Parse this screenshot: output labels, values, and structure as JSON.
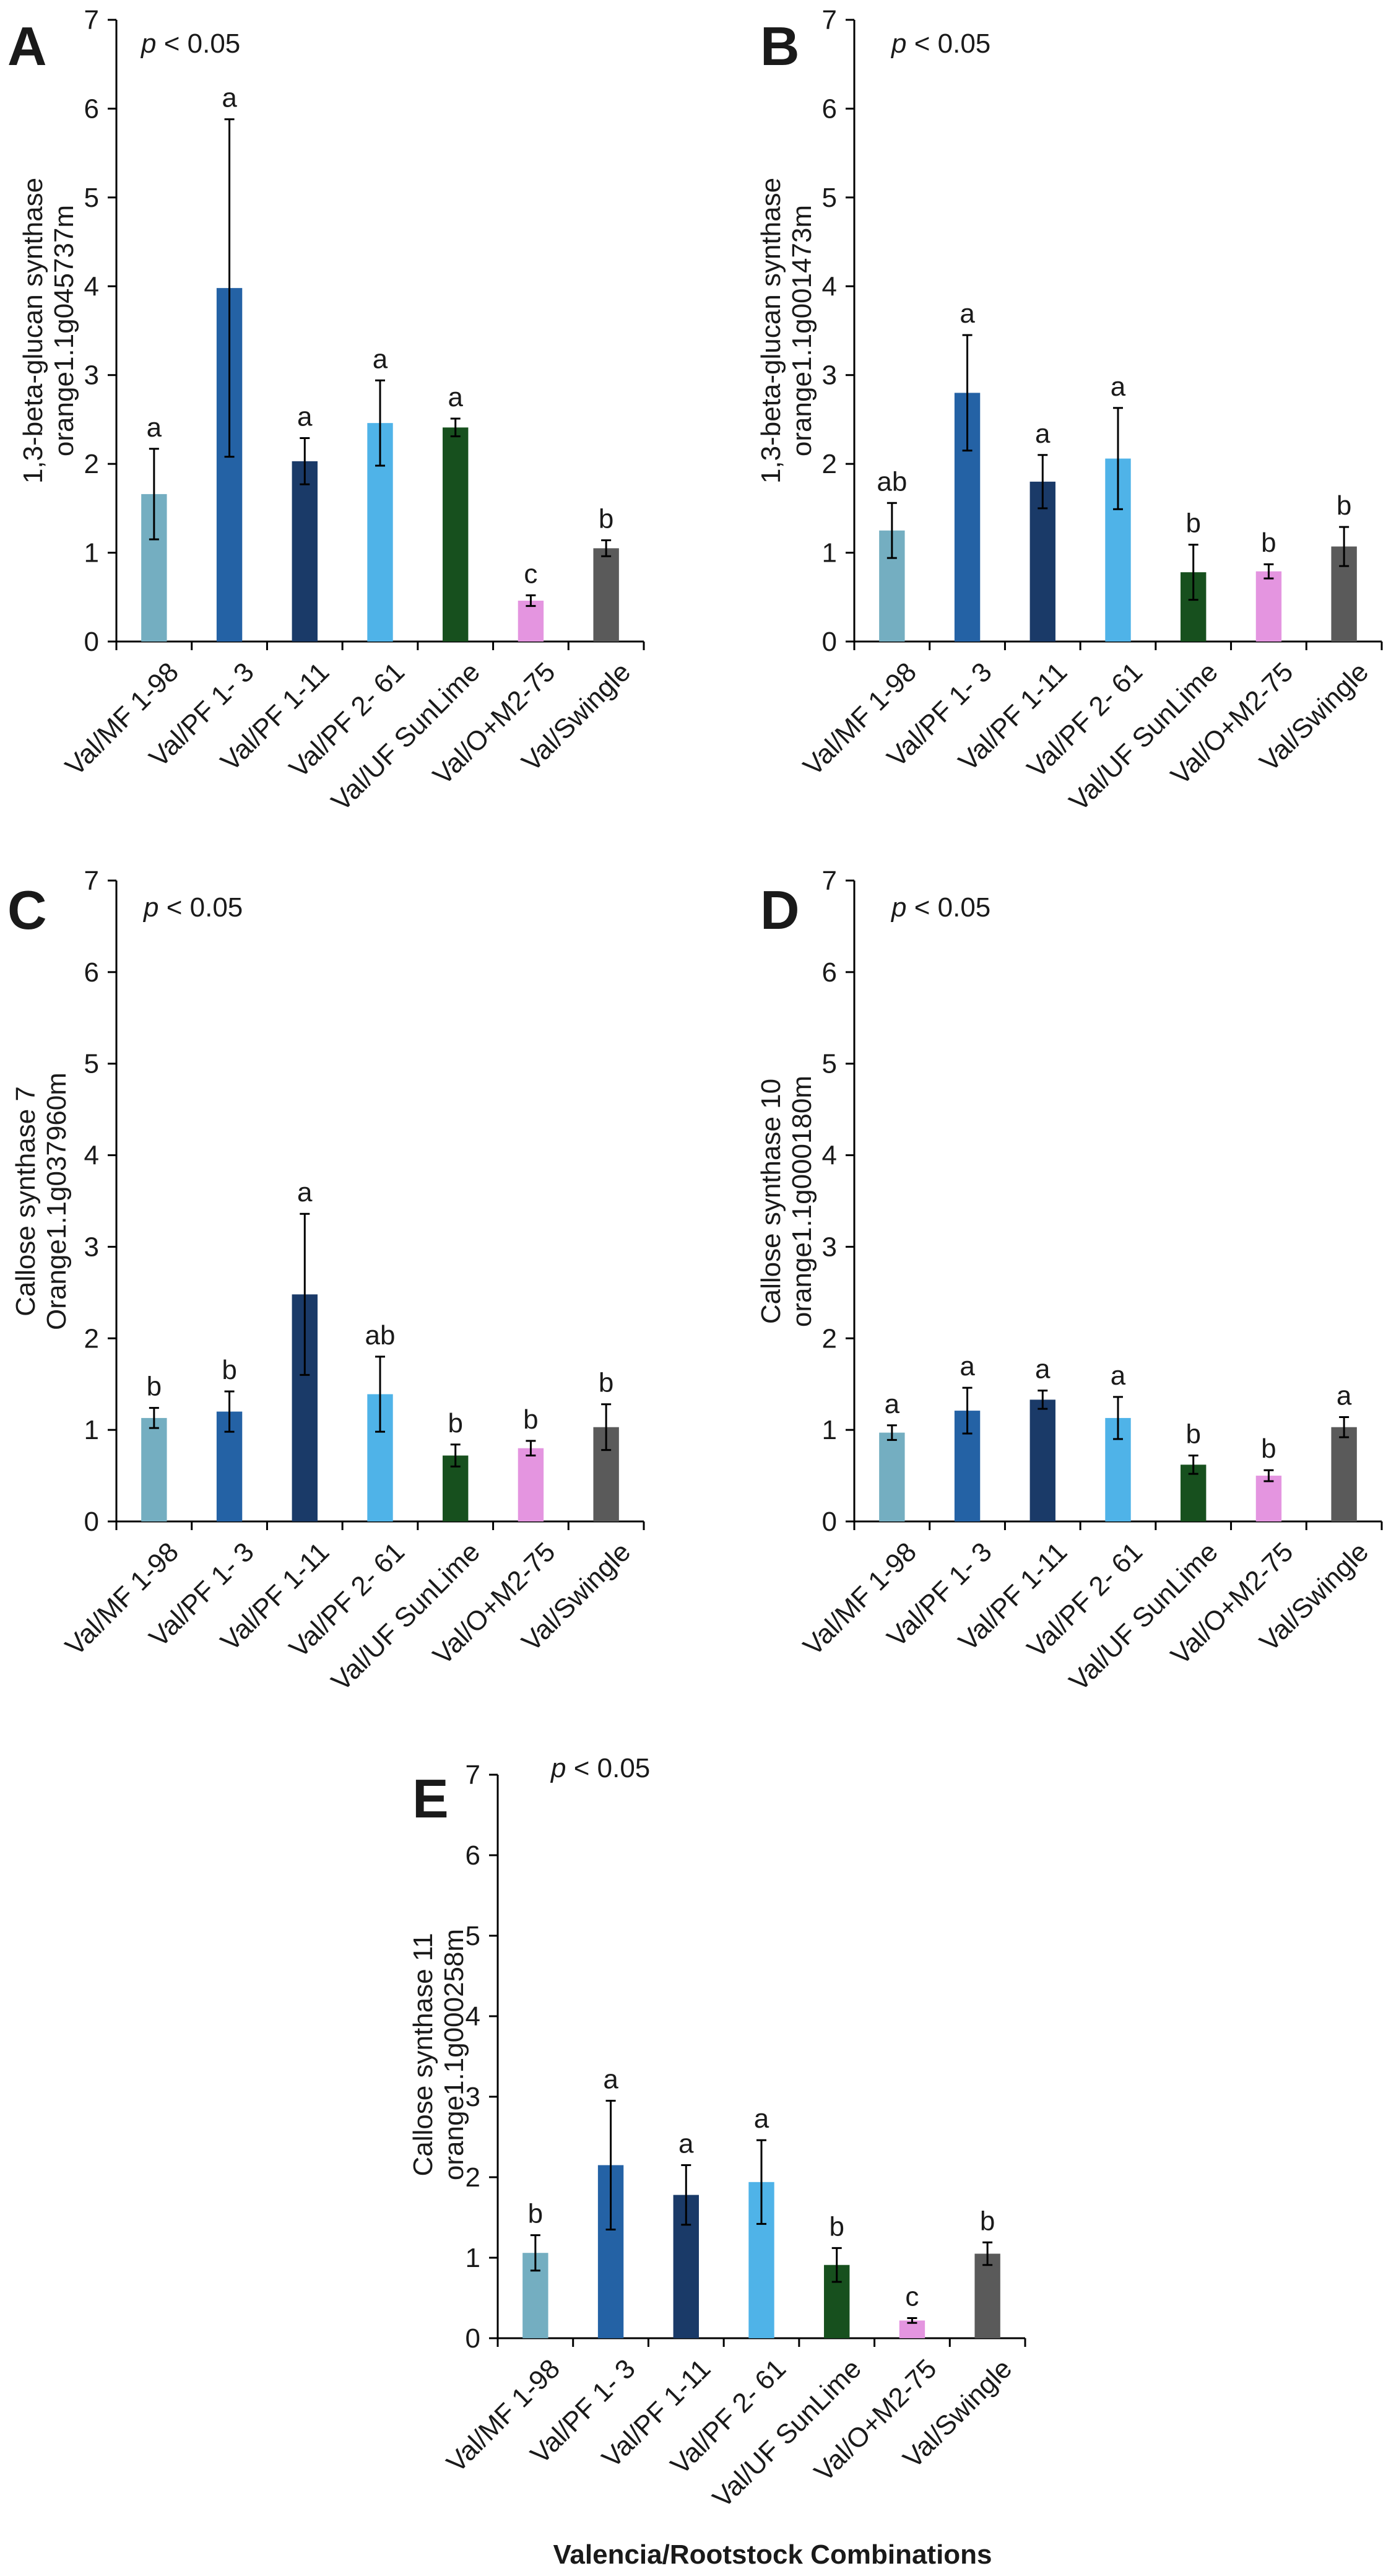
{
  "chart_data": [
    {
      "type": "bar",
      "panel": "A",
      "annotation": {
        "italic": "p",
        "rest": " < 0.05"
      },
      "ylabel": [
        "1,3-beta-glucan synthase",
        "orange1.1g045737m"
      ],
      "ylim": [
        0,
        7
      ],
      "yticks": [
        0,
        1,
        2,
        3,
        4,
        5,
        6,
        7
      ],
      "categories": [
        "Val/MF 1-98",
        "Val/PF 1- 3",
        "Val/PF 1-11",
        "Val/PF 2- 61",
        "Val/UF SunLime",
        "Val/O+M2-75",
        "Val/Swingle"
      ],
      "values": [
        1.66,
        3.98,
        2.03,
        2.46,
        2.41,
        0.46,
        1.05
      ],
      "errors": [
        0.51,
        1.9,
        0.26,
        0.48,
        0.1,
        0.06,
        0.09
      ],
      "significance": [
        "a",
        "a",
        "a",
        "a",
        "a",
        "c",
        "b"
      ]
    },
    {
      "type": "bar",
      "panel": "B",
      "annotation": {
        "italic": "p",
        "rest": " < 0.05"
      },
      "ylabel": [
        "1,3-beta-glucan synthase",
        "orange1.1g001473m"
      ],
      "ylim": [
        0,
        7
      ],
      "yticks": [
        0,
        1,
        2,
        3,
        4,
        5,
        6,
        7
      ],
      "categories": [
        "Val/MF 1-98",
        "Val/PF 1- 3",
        "Val/PF 1-11",
        "Val/PF 2- 61",
        "Val/UF SunLime",
        "Val/O+M2-75",
        "Val/Swingle"
      ],
      "values": [
        1.25,
        2.8,
        1.8,
        2.06,
        0.78,
        0.79,
        1.07
      ],
      "errors": [
        0.31,
        0.65,
        0.3,
        0.57,
        0.31,
        0.08,
        0.22
      ],
      "significance": [
        "ab",
        "a",
        "a",
        "a",
        "b",
        "b",
        "b"
      ]
    },
    {
      "type": "bar",
      "panel": "C",
      "annotation": {
        "italic": "p",
        "rest": " < 0.05"
      },
      "ylabel": [
        "Callose synthase 7",
        "Orange1.1g037960m"
      ],
      "ylim": [
        0,
        7
      ],
      "yticks": [
        0,
        1,
        2,
        3,
        4,
        5,
        6,
        7
      ],
      "categories": [
        "Val/MF 1-98",
        "Val/PF 1- 3",
        "Val/PF 1-11",
        "Val/PF 2- 61",
        "Val/UF SunLime",
        "Val/O+M2-75",
        "Val/Swingle"
      ],
      "values": [
        1.13,
        1.2,
        2.48,
        1.39,
        0.72,
        0.8,
        1.03
      ],
      "errors": [
        0.11,
        0.22,
        0.88,
        0.41,
        0.12,
        0.08,
        0.25
      ],
      "significance": [
        "b",
        "b",
        "a",
        "ab",
        "b",
        "b",
        "b"
      ]
    },
    {
      "type": "bar",
      "panel": "D",
      "annotation": {
        "italic": "p",
        "rest": " < 0.05"
      },
      "ylabel": [
        "Callose synthase 10",
        "orange1.1g000180m"
      ],
      "ylim": [
        0,
        7
      ],
      "yticks": [
        0,
        1,
        2,
        3,
        4,
        5,
        6,
        7
      ],
      "categories": [
        "Val/MF 1-98",
        "Val/PF 1- 3",
        "Val/PF 1-11",
        "Val/PF 2- 61",
        "Val/UF SunLime",
        "Val/O+M2-75",
        "Val/Swingle"
      ],
      "values": [
        0.97,
        1.21,
        1.33,
        1.13,
        0.62,
        0.5,
        1.03
      ],
      "errors": [
        0.08,
        0.25,
        0.1,
        0.23,
        0.1,
        0.06,
        0.11
      ],
      "significance": [
        "a",
        "a",
        "a",
        "a",
        "b",
        "b",
        "a"
      ]
    },
    {
      "type": "bar",
      "panel": "E",
      "annotation": {
        "italic": "p",
        "rest": " < 0.05"
      },
      "ylabel": [
        "Callose synthase 11",
        "orange1.1g000258m"
      ],
      "ylim": [
        0,
        7
      ],
      "yticks": [
        0,
        1,
        2,
        3,
        4,
        5,
        6,
        7
      ],
      "categories": [
        "Val/MF 1-98",
        "Val/PF 1- 3",
        "Val/PF 1-11",
        "Val/PF 2- 61",
        "Val/UF SunLime",
        "Val/O+M2-75",
        "Val/Swingle"
      ],
      "values": [
        1.06,
        2.15,
        1.78,
        1.94,
        0.91,
        0.22,
        1.05
      ],
      "errors": [
        0.22,
        0.8,
        0.37,
        0.52,
        0.21,
        0.03,
        0.14
      ],
      "significance": [
        "b",
        "a",
        "a",
        "a",
        "b",
        "c",
        "b"
      ]
    }
  ],
  "bar_colors": [
    "#74aec1",
    "#2462a5",
    "#1a3a68",
    "#4fb3e8",
    "#17501e",
    "#e495e0",
    "#5a5a5a"
  ],
  "xtitle": "Valencia/Rootstock Combinations"
}
